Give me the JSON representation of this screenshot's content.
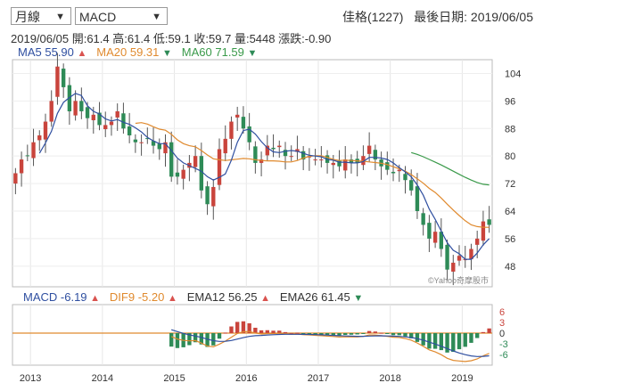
{
  "controls": {
    "period": "月線",
    "indicator": "MACD"
  },
  "header": {
    "stock": "佳格(1227)",
    "last_date_label": "最後日期:",
    "last_date": "2019/06/05"
  },
  "quote": {
    "date": "2019/06/05",
    "open_label": "開:",
    "open": "61.4",
    "high_label": "高:",
    "high": "61.4",
    "low_label": "低:",
    "low": "59.1",
    "close_label": "收:",
    "close": "59.7",
    "volume_label": "量:",
    "volume": "5448",
    "change_label": "漲跌:",
    "change": "-0.90"
  },
  "ma": [
    {
      "name": "MA5",
      "value": "55.90",
      "dir": "up",
      "color": "#2f4fa0"
    },
    {
      "name": "MA20",
      "value": "59.31",
      "dir": "down",
      "color": "#e08a2e"
    },
    {
      "name": "MA60",
      "value": "71.59",
      "dir": "down",
      "color": "#3a9a4a"
    }
  ],
  "macd_legend": [
    {
      "name": "MACD",
      "value": "-6.19",
      "dir": "up",
      "color": "#2f4fa0"
    },
    {
      "name": "DIF9",
      "value": "-5.20",
      "dir": "up",
      "color": "#e08a2e"
    },
    {
      "name": "EMA12",
      "value": "56.25",
      "dir": "up",
      "color": "#333333"
    },
    {
      "name": "EMA26",
      "value": "61.45",
      "dir": "down",
      "color": "#333333"
    }
  ],
  "watermark": "©Yahoo奇摩股市",
  "chart_data": {
    "type": "candlestick",
    "price_axis": {
      "min": 42,
      "max": 108,
      "ticks": [
        48,
        56,
        64,
        72,
        80,
        88,
        96,
        104
      ]
    },
    "macd_axis": {
      "min": -9,
      "max": 8,
      "ticks": [
        6,
        3,
        0,
        -3,
        -6
      ]
    },
    "x_axis": {
      "labels": [
        "2013",
        "2014",
        "2015",
        "2016",
        "2017",
        "2018",
        "2019"
      ]
    },
    "start": "2012-10",
    "colors": {
      "up": "#c9443c",
      "down": "#2e8b57",
      "ma5": "#2f4fa0",
      "ma20": "#e08a2e",
      "ma60": "#3a9a4a"
    },
    "close": [
      75,
      79,
      80,
      84,
      86,
      90,
      96,
      106,
      100,
      93,
      96,
      93,
      91,
      92,
      89,
      89,
      90,
      93,
      88,
      86,
      84,
      84,
      85,
      83,
      82,
      84,
      74,
      74,
      76,
      78,
      80,
      70,
      66,
      71,
      82,
      85,
      90,
      92,
      88,
      84,
      78,
      79,
      83,
      82,
      83,
      80,
      80,
      82,
      79,
      80,
      79,
      79,
      78,
      78,
      77,
      79,
      78,
      78,
      80,
      83,
      79,
      77,
      76,
      75,
      76,
      73,
      70,
      64,
      60,
      56,
      58,
      53,
      47,
      49,
      51,
      50,
      53,
      56,
      61,
      60
    ],
    "ma20": [
      null,
      null,
      null,
      null,
      null,
      null,
      null,
      null,
      null,
      null,
      null,
      null,
      null,
      null,
      null,
      null,
      null,
      null,
      null,
      null,
      89.5,
      89.7,
      89.3,
      88.5,
      87.8,
      87.5,
      86.3,
      84.7,
      83.6,
      83.0,
      82.7,
      81.6,
      80.3,
      79.2,
      78.9,
      78.7,
      78.9,
      79.1,
      79.3,
      79.2,
      78.9,
      78.7,
      78.6,
      78.6,
      78.5,
      78.3,
      78.3,
      78.7,
      79.4,
      79.9,
      80.1,
      80.1,
      79.6,
      79.0,
      78.7,
      78.8,
      78.7,
      78.6,
      78.5,
      78.3,
      78.1,
      77.9,
      77.5,
      76.9,
      76.3,
      75.6,
      74.6,
      73.4,
      72.1,
      70.6,
      69.4,
      67.8,
      66.0,
      64.3,
      62.7,
      61.2,
      60.0,
      59.5,
      59.3,
      59.3
    ],
    "ma60": [
      null,
      null,
      null,
      null,
      null,
      null,
      null,
      null,
      null,
      null,
      null,
      null,
      null,
      null,
      null,
      null,
      null,
      null,
      null,
      null,
      null,
      null,
      null,
      null,
      null,
      null,
      null,
      null,
      null,
      null,
      null,
      null,
      null,
      null,
      null,
      null,
      null,
      null,
      null,
      null,
      null,
      null,
      null,
      null,
      null,
      null,
      null,
      null,
      null,
      null,
      null,
      null,
      null,
      null,
      null,
      null,
      null,
      null,
      null,
      null,
      null,
      null,
      null,
      null,
      null,
      null,
      81.0,
      80.5,
      79.8,
      79.0,
      78.2,
      77.4,
      76.5,
      75.6,
      74.7,
      73.8,
      73.0,
      72.3,
      71.8,
      71.6
    ]
  }
}
